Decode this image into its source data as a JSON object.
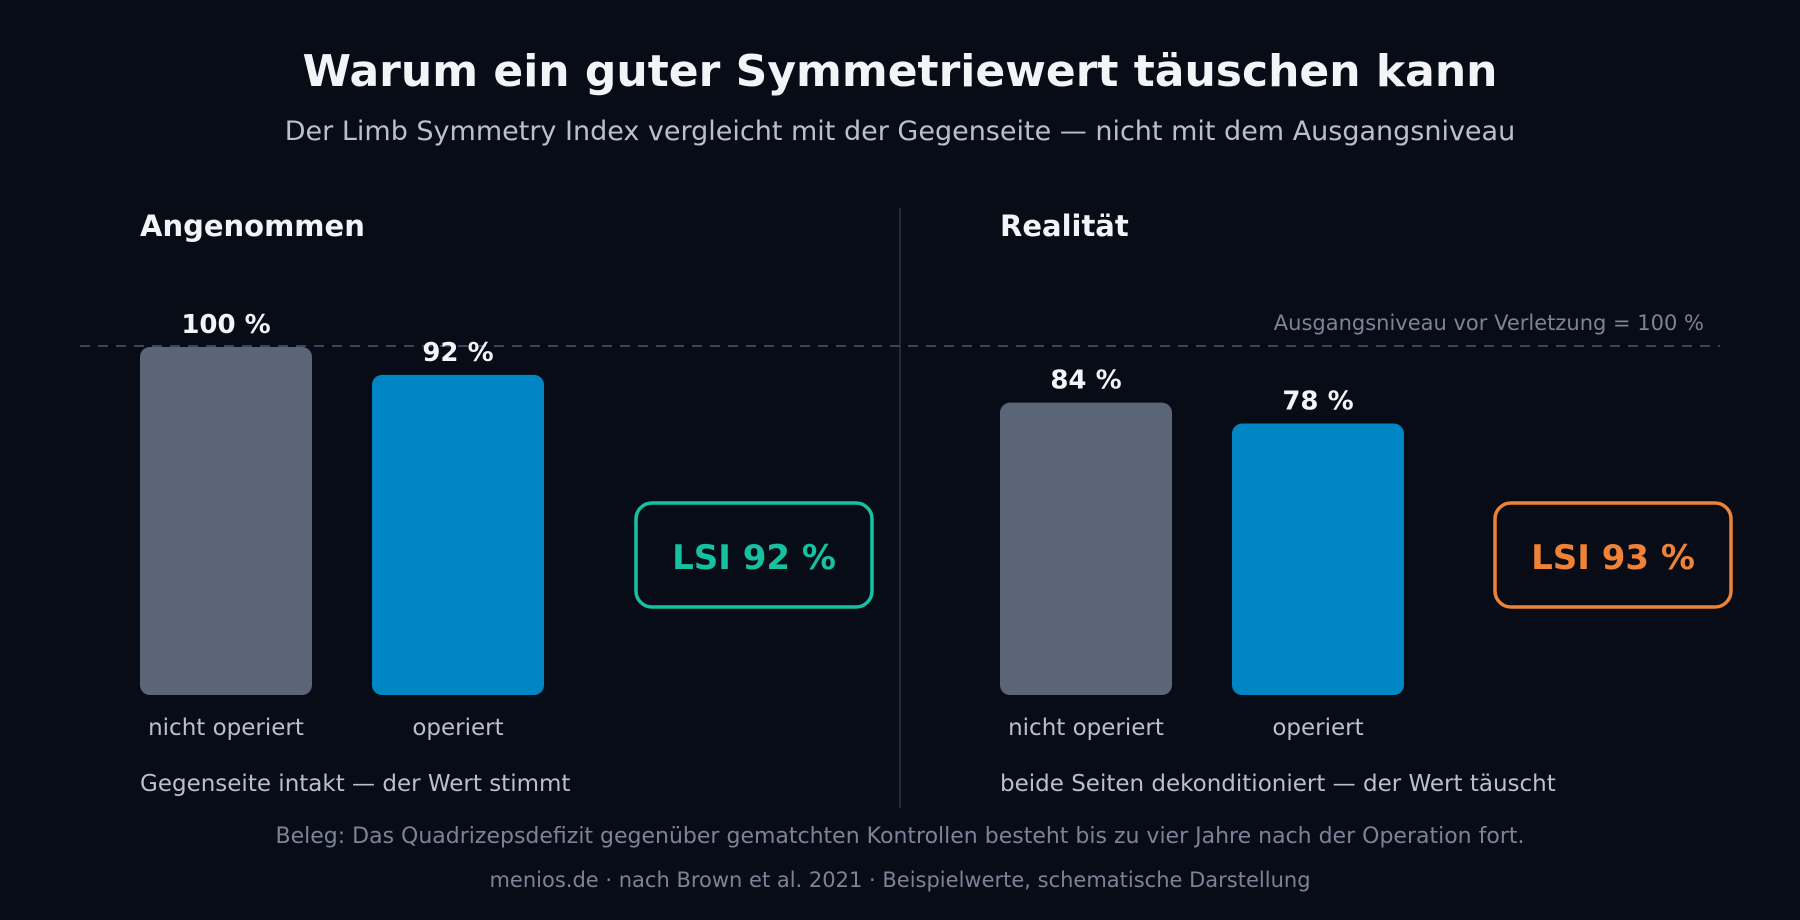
{
  "colors": {
    "background": "#080c17",
    "bar_contralateral": "#5b6578",
    "bar_operated": "#0086c5",
    "lsi_good": "#16c1a1",
    "lsi_misleading": "#ee8236",
    "baseline": "#3c4560",
    "divider": "#2c3346",
    "text_primary": "#f2f4f8",
    "text_secondary": "#b9bfcc",
    "text_muted": "#7b8396"
  },
  "header": {
    "title": "Warum ein guter Symmetriewert täuschen kann",
    "subtitle": "Der Limb Symmetry Index vergleicht mit der Gegenseite — nicht mit dem Ausgangsniveau"
  },
  "footer": {
    "evidence": "Beleg: Das Quadrizepsdefizit gegenüber gematchten Kontrollen besteht bis zu vier Jahre nach der Operation fort.",
    "source": "menios.de · nach Brown et al. 2021 · Beispielwerte, schematische Darstellung"
  },
  "chart_data": {
    "type": "bar",
    "ylim": [
      0,
      100
    ],
    "baseline": {
      "value": 100,
      "label": "Ausgangsniveau vor Verletzung = 100 %"
    },
    "categories": [
      "nicht operiert",
      "operiert"
    ],
    "panels": [
      {
        "title": "Angenommen",
        "values": [
          100,
          92
        ],
        "value_labels": [
          "100 %",
          "92 %"
        ],
        "lsi_label": "LSI 92 %",
        "lsi_tone": "good",
        "caption": "Gegenseite intakt — der Wert stimmt"
      },
      {
        "title": "Realität",
        "values": [
          84,
          78
        ],
        "value_labels": [
          "84 %",
          "78 %"
        ],
        "lsi_label": "LSI 93 %",
        "lsi_tone": "misleading",
        "caption": "beide Seiten dekonditioniert — der Wert täuscht"
      }
    ]
  }
}
